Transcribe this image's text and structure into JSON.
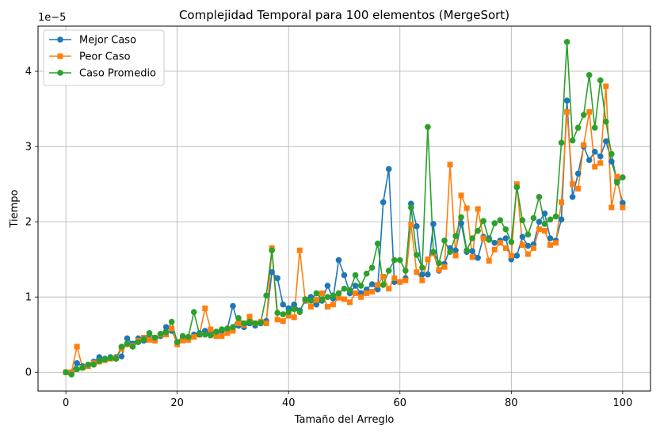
{
  "chart_data": {
    "type": "line",
    "title": "Complejidad Temporal para 100 elementos (MergeSort)",
    "xlabel": "Tamaño del Arreglo",
    "ylabel": "Tiempo",
    "y_multiplier_label": "1e−5",
    "xlim": [
      -5,
      105
    ],
    "ylim": [
      -2.5e-06,
      4.6e-05
    ],
    "x_ticks": [
      0,
      20,
      40,
      60,
      80,
      100
    ],
    "x_tick_labels": [
      "0",
      "20",
      "40",
      "60",
      "80",
      "100"
    ],
    "y_ticks": [
      0,
      1e-05,
      2e-05,
      3e-05,
      4e-05
    ],
    "y_tick_labels": [
      "0",
      "1",
      "2",
      "3",
      "4"
    ],
    "grid": true,
    "legend_position": "top-left",
    "x": [
      0,
      1,
      2,
      3,
      4,
      5,
      6,
      7,
      8,
      9,
      10,
      11,
      12,
      13,
      14,
      15,
      16,
      17,
      18,
      19,
      20,
      21,
      22,
      23,
      24,
      25,
      26,
      27,
      28,
      29,
      30,
      31,
      32,
      33,
      34,
      35,
      36,
      37,
      38,
      39,
      40,
      41,
      42,
      43,
      44,
      45,
      46,
      47,
      48,
      49,
      50,
      51,
      52,
      53,
      54,
      55,
      56,
      57,
      58,
      59,
      60,
      61,
      62,
      63,
      64,
      65,
      66,
      67,
      68,
      69,
      70,
      71,
      72,
      73,
      74,
      75,
      76,
      77,
      78,
      79,
      80,
      81,
      82,
      83,
      84,
      85,
      86,
      87,
      88,
      89,
      90,
      91,
      92,
      93,
      94,
      95,
      96,
      97,
      98,
      99,
      100
    ],
    "series": [
      {
        "name": "Mejor Caso",
        "color": "#1f77b4",
        "marker": "circle",
        "values": [
          0.0,
          0.0,
          1.2e-06,
          8e-07,
          1e-06,
          1.4e-06,
          2e-06,
          1.8e-06,
          2e-06,
          2e-06,
          2.1e-06,
          4.5e-06,
          3.8e-06,
          4.5e-06,
          4.2e-06,
          4.5e-06,
          4.4e-06,
          4.8e-06,
          6e-06,
          5.5e-06,
          4e-06,
          4.5e-06,
          4.5e-06,
          5e-06,
          5.2e-06,
          5.5e-06,
          5e-06,
          5.2e-06,
          5.5e-06,
          5.8e-06,
          8.8e-06,
          6.2e-06,
          6e-06,
          6.5e-06,
          6.2e-06,
          6.5e-06,
          6.8e-06,
          1.33e-05,
          1.25e-05,
          9e-06,
          8.5e-06,
          9e-06,
          8.2e-06,
          9.5e-06,
          1e-05,
          9e-06,
          9.5e-06,
          1.15e-05,
          9.8e-06,
          1.49e-05,
          1.29e-05,
          1.05e-05,
          1.15e-05,
          1.05e-05,
          1.1e-05,
          1.17e-05,
          1.1e-05,
          2.26e-05,
          2.7e-05,
          1.2e-05,
          1.2e-05,
          1.25e-05,
          2.24e-05,
          1.94e-05,
          1.3e-05,
          1.3e-05,
          1.97e-05,
          1.35e-05,
          1.44e-05,
          1.65e-05,
          1.62e-05,
          1.98e-05,
          1.6e-05,
          1.61e-05,
          1.52e-05,
          1.8e-05,
          1.78e-05,
          1.72e-05,
          1.75e-05,
          1.78e-05,
          1.5e-05,
          1.55e-05,
          1.8e-05,
          1.68e-05,
          1.7e-05,
          2e-05,
          2.11e-05,
          1.78e-05,
          1.75e-05,
          2.03e-05,
          3.61e-05,
          2.33e-05,
          2.64e-05,
          3e-05,
          2.82e-05,
          2.93e-05,
          2.87e-05,
          3.07e-05,
          2.8e-05,
          2.55e-05,
          2.25e-05
        ]
      },
      {
        "name": "Peor Caso",
        "color": "#ff7f0e",
        "marker": "square",
        "values": [
          0.0,
          0.0,
          3.4e-06,
          6e-07,
          8e-07,
          1.2e-06,
          1.4e-06,
          1.6e-06,
          1.8e-06,
          1.9e-06,
          3.1e-06,
          3.7e-06,
          3.5e-06,
          4.2e-06,
          4.6e-06,
          4.3e-06,
          4.2e-06,
          5e-06,
          5e-06,
          5.8e-06,
          3.7e-06,
          4.2e-06,
          4.3e-06,
          4.7e-06,
          5e-06,
          8.5e-06,
          5.7e-06,
          4.8e-06,
          4.8e-06,
          5.2e-06,
          5.5e-06,
          6.5e-06,
          6.3e-06,
          7.4e-06,
          6.5e-06,
          6.7e-06,
          6.5e-06,
          1.65e-05,
          7e-06,
          6.8e-06,
          7.5e-06,
          7.3e-06,
          1.62e-05,
          9.6e-06,
          8.7e-06,
          9.6e-06,
          1.05e-05,
          8.7e-06,
          9e-06,
          9.9e-06,
          9.7e-06,
          9.3e-06,
          1.05e-05,
          1e-05,
          1.05e-05,
          1.07e-05,
          1.16e-05,
          1.27e-05,
          1.11e-05,
          1.25e-05,
          1.2e-05,
          1.22e-05,
          1.96e-05,
          1.33e-05,
          1.22e-05,
          1.5e-05,
          1.58e-05,
          1.36e-05,
          1.4e-05,
          2.76e-05,
          1.55e-05,
          2.35e-05,
          2.18e-05,
          1.53e-05,
          2.17e-05,
          1.78e-05,
          1.48e-05,
          1.63e-05,
          1.72e-05,
          1.65e-05,
          1.55e-05,
          2.5e-05,
          1.69e-05,
          1.57e-05,
          1.65e-05,
          1.9e-05,
          1.88e-05,
          1.69e-05,
          1.72e-05,
          2.26e-05,
          3.46e-05,
          2.5e-05,
          2.44e-05,
          3.02e-05,
          3.46e-05,
          2.73e-05,
          2.78e-05,
          3.8e-05,
          2.19e-05,
          2.6e-05,
          2.19e-05
        ]
      },
      {
        "name": "Caso Promedio",
        "color": "#2ca02c",
        "marker": "circle",
        "values": [
          0.0,
          -3e-07,
          4e-07,
          6e-07,
          1e-06,
          1e-06,
          1.5e-06,
          1.7e-06,
          1.9e-06,
          1.8e-06,
          3.4e-06,
          3.8e-06,
          3.4e-06,
          4e-06,
          4.4e-06,
          5.2e-06,
          4.6e-06,
          5.1e-06,
          5.3e-06,
          6.7e-06,
          4e-06,
          4.8e-06,
          4.7e-06,
          8e-06,
          5e-06,
          5e-06,
          4.9e-06,
          5.4e-06,
          5.7e-06,
          5.8e-06,
          6e-06,
          7.2e-06,
          6.5e-06,
          6.7e-06,
          6.5e-06,
          6.6e-06,
          1.02e-05,
          1.62e-05,
          7.9e-06,
          7.7e-06,
          8e-06,
          8.4e-06,
          8e-06,
          9.7e-06,
          9.5e-06,
          1.05e-05,
          9.7e-06,
          1e-05,
          1.02e-05,
          1.05e-05,
          1.11e-05,
          1.09e-05,
          1.29e-05,
          1.15e-05,
          1.31e-05,
          1.39e-05,
          1.71e-05,
          1.16e-05,
          1.35e-05,
          1.49e-05,
          1.49e-05,
          1.35e-05,
          2.19e-05,
          1.56e-05,
          1.39e-05,
          3.26e-05,
          1.6e-05,
          1.45e-05,
          1.75e-05,
          1.6e-05,
          1.81e-05,
          2.06e-05,
          1.62e-05,
          1.78e-05,
          1.88e-05,
          2.01e-05,
          1.76e-05,
          1.98e-05,
          2.02e-05,
          1.9e-05,
          1.73e-05,
          2.46e-05,
          2.02e-05,
          1.83e-05,
          2.05e-05,
          2.33e-05,
          1.97e-05,
          2.03e-05,
          2.07e-05,
          3.05e-05,
          4.39e-05,
          3.08e-05,
          3.25e-05,
          3.42e-05,
          3.95e-05,
          3.25e-05,
          3.88e-05,
          3.33e-05,
          2.9e-05,
          2.52e-05,
          2.59e-05
        ]
      }
    ]
  }
}
